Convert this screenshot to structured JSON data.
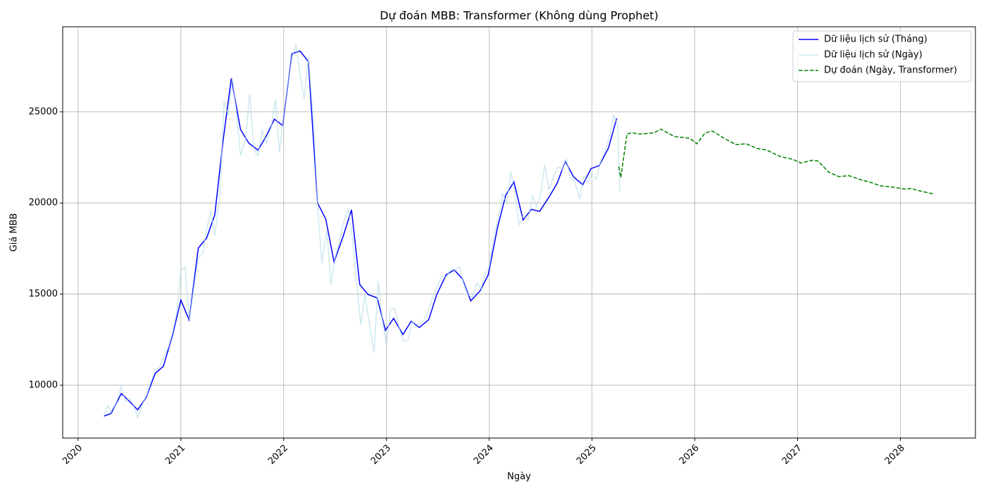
{
  "chart_data": {
    "type": "line",
    "title": "Dự đoán MBB: Transformer (Không dùng Prophet)",
    "x_label": "Ngày",
    "y_label": "Giá MBB",
    "xlim": [
      2019.85,
      2028.73
    ],
    "xticks": [
      2020,
      2021,
      2022,
      2023,
      2024,
      2025,
      2026,
      2027,
      2028
    ],
    "ylim": [
      7100,
      29670
    ],
    "yticks": [
      10000,
      15000,
      20000,
      25000
    ],
    "grid": true,
    "legend": "upper right",
    "series": [
      {
        "name": "Dữ liệu lịch sử (Tháng)",
        "color": "#0000ff",
        "linestyle": "solid",
        "width": 1.5,
        "x": [
          2020.25,
          2020.32,
          2020.42,
          2020.5,
          2020.58,
          2020.66,
          2020.75,
          2020.83,
          2020.92,
          2021.0,
          2021.08,
          2021.17,
          2021.25,
          2021.33,
          2021.41,
          2021.49,
          2021.58,
          2021.66,
          2021.75,
          2021.83,
          2021.91,
          2021.99,
          2022.08,
          2022.16,
          2022.24,
          2022.33,
          2022.41,
          2022.49,
          2022.58,
          2022.66,
          2022.74,
          2022.82,
          2022.91,
          2022.99,
          2023.07,
          2023.16,
          2023.24,
          2023.32,
          2023.41,
          2023.49,
          2023.58,
          2023.66,
          2023.74,
          2023.82,
          2023.91,
          2023.99,
          2024.08,
          2024.16,
          2024.24,
          2024.33,
          2024.41,
          2024.49,
          2024.58,
          2024.66,
          2024.74,
          2024.82,
          2024.91,
          2024.99,
          2025.07,
          2025.16,
          2025.24
        ],
        "values": [
          8300,
          8450,
          9540,
          9110,
          8650,
          9300,
          10650,
          11040,
          12780,
          14670,
          13590,
          17530,
          18070,
          19350,
          23400,
          26840,
          24030,
          23290,
          22900,
          23670,
          24600,
          24250,
          28190,
          28340,
          27760,
          20000,
          19110,
          16760,
          18190,
          19620,
          15520,
          14980,
          14790,
          13010,
          13670,
          12780,
          13510,
          13170,
          13590,
          14980,
          16060,
          16330,
          15830,
          14630,
          15170,
          16060,
          18650,
          20420,
          21160,
          19070,
          19650,
          19540,
          20310,
          21080,
          22280,
          21430,
          21000,
          21890,
          22050,
          23020,
          24640
        ]
      },
      {
        "name": "Dữ liệu lịch sử (Ngày)",
        "color": "#add8e6",
        "linestyle": "solid",
        "width": 1.5,
        "opacity": 0.6,
        "x": [
          2020.25,
          2020.29,
          2020.33,
          2020.38,
          2020.42,
          2020.46,
          2020.5,
          2020.54,
          2020.58,
          2020.63,
          2020.67,
          2020.71,
          2020.75,
          2020.79,
          2020.83,
          2020.88,
          2020.92,
          2020.96,
          2021.0,
          2021.04,
          2021.08,
          2021.13,
          2021.17,
          2021.21,
          2021.25,
          2021.29,
          2021.33,
          2021.38,
          2021.42,
          2021.46,
          2021.5,
          2021.54,
          2021.58,
          2021.63,
          2021.67,
          2021.71,
          2021.75,
          2021.79,
          2021.83,
          2021.88,
          2021.92,
          2021.96,
          2022.0,
          2022.04,
          2022.08,
          2022.12,
          2022.16,
          2022.2,
          2022.24,
          2022.29,
          2022.33,
          2022.37,
          2022.42,
          2022.46,
          2022.5,
          2022.54,
          2022.58,
          2022.63,
          2022.67,
          2022.71,
          2022.75,
          2022.79,
          2022.83,
          2022.88,
          2022.92,
          2022.96,
          2023.0,
          2023.04,
          2023.08,
          2023.13,
          2023.17,
          2023.21,
          2023.25,
          2023.29,
          2023.33,
          2023.38,
          2023.42,
          2023.46,
          2023.5,
          2023.54,
          2023.58,
          2023.63,
          2023.67,
          2023.71,
          2023.75,
          2023.79,
          2023.83,
          2023.88,
          2023.92,
          2023.96,
          2024.0,
          2024.04,
          2024.08,
          2024.13,
          2024.17,
          2024.21,
          2024.25,
          2024.29,
          2024.33,
          2024.38,
          2024.42,
          2024.46,
          2024.5,
          2024.54,
          2024.58,
          2024.63,
          2024.67,
          2024.71,
          2024.75,
          2024.79,
          2024.83,
          2024.88,
          2024.92,
          2024.96,
          2025.0,
          2025.04,
          2025.08,
          2025.13,
          2025.17,
          2025.21,
          2025.25,
          2025.27
        ],
        "values": [
          8300,
          8900,
          8400,
          9200,
          9900,
          9100,
          9300,
          8900,
          8200,
          9000,
          9500,
          10200,
          10800,
          11000,
          11500,
          12100,
          12900,
          14000,
          16300,
          16500,
          13600,
          15500,
          17000,
          17200,
          18500,
          19600,
          18200,
          20500,
          25600,
          24800,
          26900,
          25000,
          22600,
          23500,
          26000,
          22900,
          22600,
          24000,
          23300,
          24200,
          25700,
          22800,
          24800,
          26500,
          28000,
          28700,
          27000,
          25700,
          28000,
          24500,
          20000,
          16700,
          18500,
          15500,
          17000,
          17800,
          18900,
          19700,
          18000,
          15600,
          13300,
          15000,
          13500,
          11800,
          15700,
          13600,
          12200,
          14200,
          14200,
          13000,
          12400,
          12500,
          13500,
          13200,
          13400,
          13700,
          14300,
          15000,
          15500,
          16000,
          15900,
          16400,
          16300,
          16500,
          15600,
          15000,
          14800,
          15600,
          15300,
          16200,
          16500,
          18000,
          19000,
          20500,
          20000,
          21700,
          20600,
          18800,
          19300,
          19100,
          20400,
          19800,
          20500,
          22100,
          20700,
          21500,
          22000,
          21800,
          22400,
          21400,
          21200,
          20200,
          21500,
          21100,
          21600,
          21300,
          22200,
          22900,
          23600,
          24800,
          24300,
          20600
        ]
      },
      {
        "name": "Dự đoán (Ngày, Transformer)",
        "color": "#008000",
        "linestyle": "dashed",
        "width": 1.5,
        "x": [
          2025.26,
          2025.28,
          2025.34,
          2025.4,
          2025.45,
          2025.5,
          2025.6,
          2025.67,
          2025.8,
          2025.95,
          2026.02,
          2026.1,
          2026.17,
          2026.3,
          2026.4,
          2026.5,
          2026.6,
          2026.7,
          2026.83,
          2026.95,
          2027.03,
          2027.15,
          2027.2,
          2027.3,
          2027.4,
          2027.5,
          2027.6,
          2027.7,
          2027.8,
          2027.95,
          2028.05,
          2028.1,
          2028.2,
          2028.32
        ],
        "values": [
          22000,
          21400,
          23800,
          23850,
          23780,
          23800,
          23850,
          24050,
          23650,
          23550,
          23250,
          23850,
          23950,
          23500,
          23200,
          23250,
          23000,
          22900,
          22550,
          22400,
          22200,
          22350,
          22300,
          21700,
          21450,
          21500,
          21300,
          21150,
          20950,
          20850,
          20750,
          20800,
          20650,
          20500
        ]
      }
    ]
  }
}
